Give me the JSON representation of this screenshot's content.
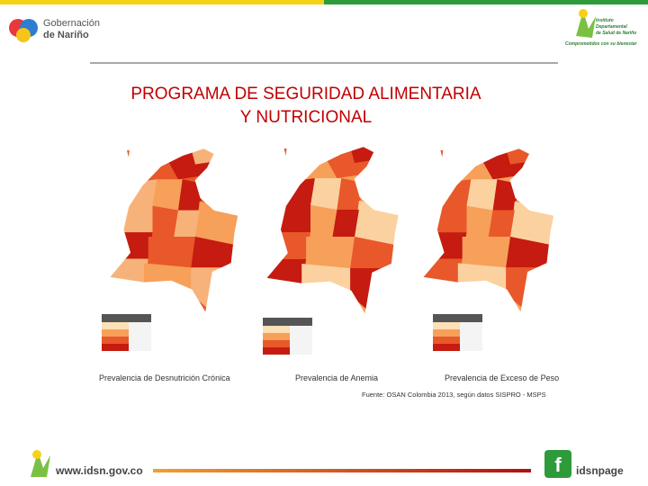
{
  "header": {
    "left_logo": [
      "Gobernación",
      "de Nariño"
    ],
    "right_logo": [
      "Instituto",
      "Departamental",
      "de Salud de Nariño",
      "Comprometidos con su bienestar"
    ]
  },
  "title": [
    "PROGRAMA DE SEGURIDAD ALIMENTARIA",
    "Y NUTRICIONAL"
  ],
  "maps": [
    {
      "caption": "Prevalencia de Desnutrición Crónica"
    },
    {
      "caption": "Prevalencia de Anemia"
    },
    {
      "caption": "Prevalencia de Exceso de Peso"
    }
  ],
  "source": "Fuente: OSAN Colombia 2013, según datos SISPRO - MSPS",
  "footer": {
    "url": "www.idsn.gov.co",
    "social": "idsnpage"
  }
}
